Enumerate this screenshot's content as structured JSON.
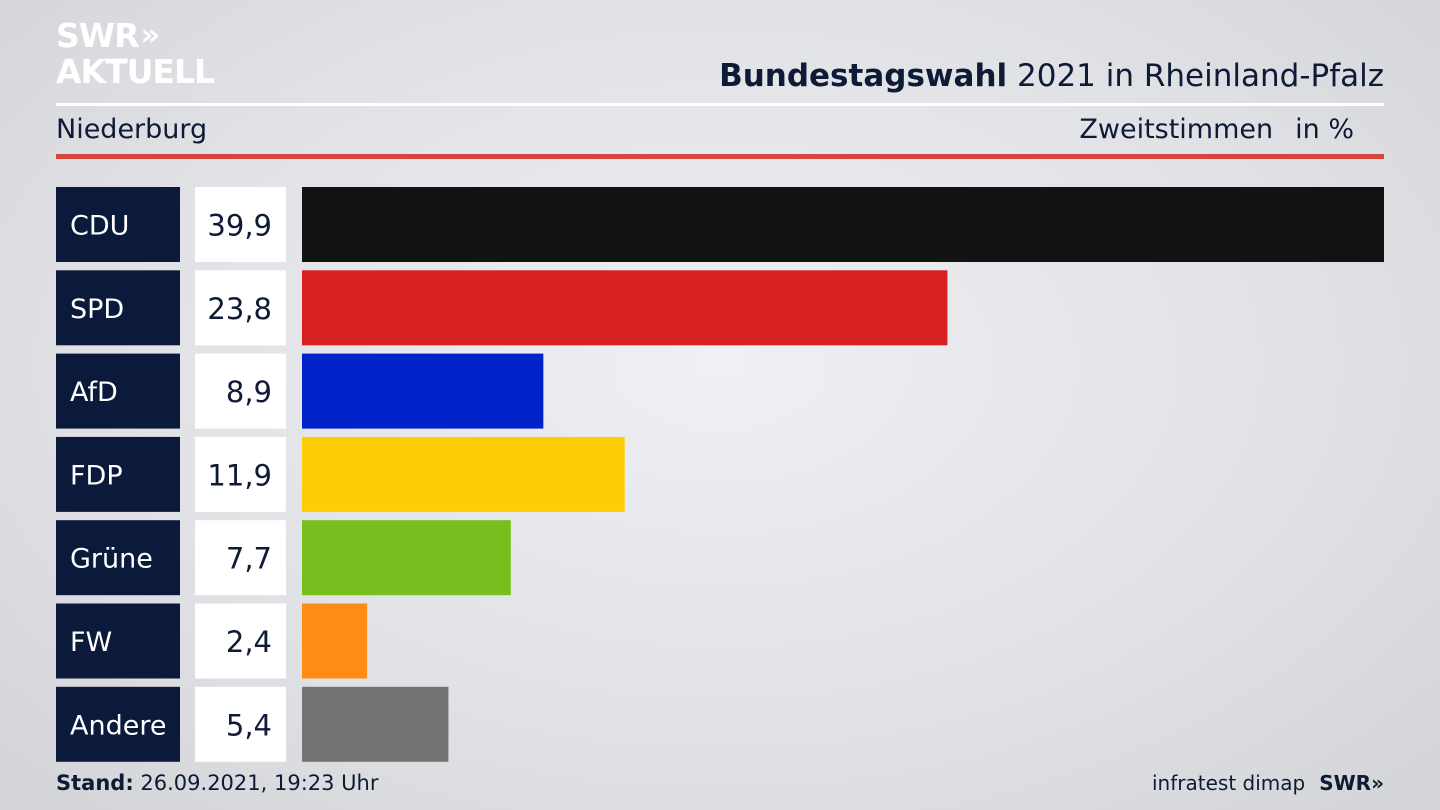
{
  "brand": {
    "line1": "SWR",
    "line2": "AKTUELL",
    "chevrons": "»"
  },
  "header": {
    "title_bold": "Bundestagswahl",
    "title_rest": " 2021 in Rheinland-Pfalz"
  },
  "subheader": {
    "location": "Niederburg",
    "measure": "Zweitstimmen",
    "unit": "in %"
  },
  "footer": {
    "stand_label": "Stand:",
    "stand_value": " 26.09.2021, 19:23 Uhr",
    "source": "infratest dimap",
    "broadcaster": "SWR",
    "broadcaster_chevrons": "»"
  },
  "chart_data": {
    "type": "bar",
    "orientation": "horizontal",
    "categories": [
      "CDU",
      "SPD",
      "AfD",
      "FDP",
      "Grüne",
      "FW",
      "Andere"
    ],
    "values": [
      39.9,
      23.8,
      8.9,
      11.9,
      7.7,
      2.4,
      5.4
    ],
    "value_labels": [
      "39,9",
      "23,8",
      "8,9",
      "11,9",
      "7,7",
      "2,4",
      "5,4"
    ],
    "colors": [
      "#121212",
      "#d72020",
      "#0022c9",
      "#ffcc08",
      "#78be1e",
      "#ff8c14",
      "#747474"
    ],
    "xlim": [
      0,
      39.9
    ],
    "grid": false,
    "legend": "none"
  },
  "colors": {
    "label_bg": "#0b1a3b",
    "value_bg": "#ffffff",
    "accent_red": "#d5473c"
  }
}
